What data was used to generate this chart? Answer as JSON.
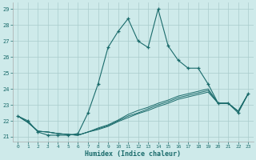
{
  "title": "",
  "xlabel": "Humidex (Indice chaleur)",
  "bg_color": "#ceeaea",
  "grid_color": "#aacccc",
  "line_color": "#1a6b6b",
  "xlim": [
    -0.5,
    23.5
  ],
  "ylim": [
    20.7,
    29.4
  ],
  "yticks": [
    21,
    22,
    23,
    24,
    25,
    26,
    27,
    28,
    29
  ],
  "xticks": [
    0,
    1,
    2,
    3,
    4,
    5,
    6,
    7,
    8,
    9,
    10,
    11,
    12,
    13,
    14,
    15,
    16,
    17,
    18,
    19,
    20,
    21,
    22,
    23
  ],
  "main_series": [
    22.3,
    22.0,
    21.3,
    21.1,
    21.1,
    21.1,
    21.2,
    22.5,
    24.3,
    26.6,
    27.6,
    28.4,
    27.0,
    26.6,
    29.0,
    26.7,
    25.8,
    25.3,
    25.3,
    24.3,
    23.1,
    23.1,
    22.5,
    23.7
  ],
  "linear1": [
    22.3,
    21.9,
    21.35,
    21.3,
    21.2,
    21.15,
    21.1,
    21.3,
    21.55,
    21.75,
    22.05,
    22.4,
    22.65,
    22.85,
    23.1,
    23.3,
    23.55,
    23.7,
    23.85,
    24.0,
    23.1,
    23.1,
    22.6,
    23.7
  ],
  "linear2": [
    22.3,
    21.9,
    21.35,
    21.3,
    21.2,
    21.15,
    21.1,
    21.3,
    21.5,
    21.7,
    22.0,
    22.3,
    22.5,
    22.75,
    23.0,
    23.2,
    23.45,
    23.6,
    23.75,
    23.9,
    23.1,
    23.1,
    22.6,
    23.7
  ],
  "linear3": [
    22.3,
    21.9,
    21.35,
    21.3,
    21.2,
    21.15,
    21.1,
    21.3,
    21.45,
    21.65,
    21.95,
    22.2,
    22.45,
    22.65,
    22.9,
    23.1,
    23.35,
    23.5,
    23.65,
    23.8,
    23.1,
    23.1,
    22.6,
    23.7
  ]
}
